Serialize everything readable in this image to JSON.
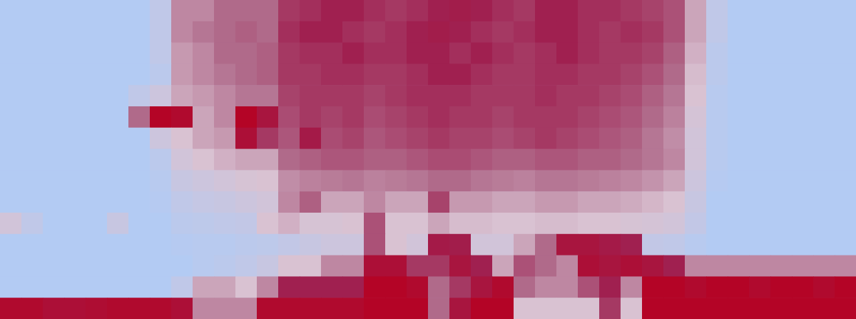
{
  "chart_data": {
    "type": "heatmap",
    "zlim": [
      0,
      1
    ],
    "tick_labels": false,
    "cells": [
      [
        0.3,
        0.3,
        0.3,
        0.3,
        0.3,
        0.3,
        0.3,
        0.35,
        0.55,
        0.55,
        0.6,
        0.6,
        0.6,
        0.7,
        0.72,
        0.75,
        0.75,
        0.72,
        0.7,
        0.72,
        0.75,
        0.78,
        0.75,
        0.72,
        0.7,
        0.75,
        0.75,
        0.72,
        0.72,
        0.7,
        0.68,
        0.65,
        0.5,
        0.35,
        0.3,
        0.3,
        0.3,
        0.3,
        0.3,
        0.3
      ],
      [
        0.3,
        0.3,
        0.3,
        0.3,
        0.3,
        0.3,
        0.3,
        0.35,
        0.55,
        0.58,
        0.6,
        0.62,
        0.6,
        0.72,
        0.75,
        0.75,
        0.72,
        0.7,
        0.72,
        0.75,
        0.78,
        0.75,
        0.72,
        0.7,
        0.72,
        0.75,
        0.75,
        0.72,
        0.7,
        0.72,
        0.7,
        0.65,
        0.5,
        0.35,
        0.3,
        0.3,
        0.3,
        0.3,
        0.3,
        0.3
      ],
      [
        0.3,
        0.3,
        0.3,
        0.3,
        0.3,
        0.3,
        0.3,
        0.35,
        0.52,
        0.55,
        0.6,
        0.6,
        0.62,
        0.7,
        0.72,
        0.72,
        0.75,
        0.72,
        0.72,
        0.75,
        0.75,
        0.72,
        0.75,
        0.72,
        0.7,
        0.72,
        0.75,
        0.72,
        0.7,
        0.7,
        0.68,
        0.62,
        0.48,
        0.33,
        0.3,
        0.3,
        0.3,
        0.3,
        0.3,
        0.3
      ],
      [
        0.3,
        0.3,
        0.3,
        0.3,
        0.3,
        0.3,
        0.3,
        0.33,
        0.52,
        0.55,
        0.58,
        0.6,
        0.62,
        0.7,
        0.7,
        0.72,
        0.72,
        0.7,
        0.7,
        0.72,
        0.75,
        0.75,
        0.72,
        0.7,
        0.7,
        0.72,
        0.72,
        0.7,
        0.7,
        0.68,
        0.65,
        0.6,
        0.46,
        0.33,
        0.3,
        0.3,
        0.3,
        0.3,
        0.3,
        0.3
      ],
      [
        0.3,
        0.3,
        0.3,
        0.3,
        0.3,
        0.3,
        0.35,
        0.4,
        0.5,
        0.52,
        0.55,
        0.58,
        0.58,
        0.68,
        0.7,
        0.7,
        0.7,
        0.68,
        0.7,
        0.72,
        0.72,
        0.72,
        0.7,
        0.7,
        0.7,
        0.72,
        0.7,
        0.7,
        0.68,
        0.66,
        0.62,
        0.58,
        0.45,
        0.32,
        0.3,
        0.3,
        0.3,
        0.3,
        0.3,
        0.3
      ],
      [
        0.3,
        0.3,
        0.3,
        0.3,
        0.3,
        0.3,
        0.6,
        1.0,
        0.95,
        0.5,
        0.55,
        1.0,
        0.85,
        0.66,
        0.7,
        0.68,
        0.7,
        0.66,
        0.68,
        0.7,
        0.72,
        0.7,
        0.7,
        0.68,
        0.7,
        0.7,
        0.7,
        0.68,
        0.66,
        0.64,
        0.6,
        0.56,
        0.43,
        0.32,
        0.3,
        0.3,
        0.3,
        0.3,
        0.3,
        0.3
      ],
      [
        0.3,
        0.3,
        0.3,
        0.3,
        0.3,
        0.3,
        0.3,
        0.4,
        0.45,
        0.5,
        0.52,
        0.9,
        0.7,
        0.64,
        0.8,
        0.66,
        0.68,
        0.64,
        0.66,
        0.68,
        0.7,
        0.68,
        0.68,
        0.66,
        0.68,
        0.7,
        0.68,
        0.66,
        0.64,
        0.62,
        0.58,
        0.54,
        0.42,
        0.32,
        0.3,
        0.3,
        0.3,
        0.3,
        0.3,
        0.3
      ],
      [
        0.3,
        0.3,
        0.3,
        0.3,
        0.3,
        0.3,
        0.3,
        0.33,
        0.42,
        0.45,
        0.48,
        0.5,
        0.5,
        0.6,
        0.62,
        0.64,
        0.64,
        0.62,
        0.62,
        0.64,
        0.66,
        0.66,
        0.64,
        0.62,
        0.62,
        0.64,
        0.64,
        0.62,
        0.62,
        0.6,
        0.58,
        0.55,
        0.42,
        0.32,
        0.3,
        0.3,
        0.3,
        0.3,
        0.3,
        0.3
      ],
      [
        0.3,
        0.3,
        0.3,
        0.3,
        0.3,
        0.3,
        0.3,
        0.32,
        0.38,
        0.4,
        0.42,
        0.44,
        0.45,
        0.54,
        0.56,
        0.57,
        0.58,
        0.56,
        0.57,
        0.58,
        0.6,
        0.6,
        0.58,
        0.57,
        0.56,
        0.58,
        0.58,
        0.57,
        0.56,
        0.55,
        0.53,
        0.5,
        0.4,
        0.31,
        0.3,
        0.3,
        0.3,
        0.3,
        0.3,
        0.3
      ],
      [
        0.3,
        0.3,
        0.3,
        0.3,
        0.3,
        0.3,
        0.3,
        0.31,
        0.35,
        0.37,
        0.38,
        0.4,
        0.42,
        0.55,
        0.62,
        0.5,
        0.5,
        0.55,
        0.5,
        0.5,
        0.68,
        0.52,
        0.52,
        0.5,
        0.5,
        0.52,
        0.52,
        0.5,
        0.5,
        0.49,
        0.47,
        0.45,
        0.38,
        0.3,
        0.3,
        0.3,
        0.3,
        0.3,
        0.3,
        0.3
      ],
      [
        0.42,
        0.35,
        0.3,
        0.3,
        0.3,
        0.38,
        0.3,
        0.3,
        0.33,
        0.34,
        0.35,
        0.36,
        0.45,
        0.48,
        0.44,
        0.44,
        0.45,
        0.65,
        0.45,
        0.45,
        0.5,
        0.46,
        0.46,
        0.45,
        0.45,
        0.46,
        0.46,
        0.45,
        0.45,
        0.44,
        0.43,
        0.42,
        0.36,
        0.3,
        0.3,
        0.3,
        0.3,
        0.3,
        0.3,
        0.3
      ],
      [
        0.3,
        0.3,
        0.3,
        0.3,
        0.3,
        0.3,
        0.3,
        0.3,
        0.31,
        0.32,
        0.32,
        0.33,
        0.34,
        0.36,
        0.38,
        0.4,
        0.4,
        0.65,
        0.45,
        0.42,
        0.8,
        0.78,
        0.42,
        0.42,
        0.5,
        0.6,
        0.85,
        0.85,
        0.8,
        0.75,
        0.36,
        0.35,
        0.32,
        0.3,
        0.3,
        0.3,
        0.3,
        0.3,
        0.3,
        0.3
      ],
      [
        0.3,
        0.3,
        0.3,
        0.3,
        0.3,
        0.3,
        0.3,
        0.3,
        0.3,
        0.32,
        0.33,
        0.35,
        0.38,
        0.45,
        0.45,
        0.55,
        0.55,
        0.9,
        0.9,
        0.7,
        0.7,
        0.85,
        0.75,
        0.5,
        0.65,
        0.6,
        0.55,
        0.9,
        0.85,
        0.9,
        0.85,
        0.75,
        0.55,
        0.55,
        0.55,
        0.55,
        0.55,
        0.55,
        0.55,
        0.55
      ],
      [
        0.3,
        0.3,
        0.3,
        0.3,
        0.3,
        0.3,
        0.3,
        0.3,
        0.35,
        0.5,
        0.5,
        0.45,
        0.55,
        0.75,
        0.75,
        0.75,
        0.75,
        1.0,
        1.0,
        0.95,
        0.6,
        0.7,
        0.85,
        0.95,
        0.6,
        0.55,
        0.55,
        0.65,
        0.75,
        0.55,
        1.0,
        1.0,
        0.95,
        1.0,
        1.0,
        0.95,
        1.0,
        1.0,
        0.95,
        1.0
      ],
      [
        0.95,
        0.95,
        0.9,
        0.9,
        0.92,
        0.95,
        0.95,
        0.95,
        0.9,
        0.55,
        0.55,
        0.55,
        0.95,
        0.95,
        0.95,
        0.95,
        0.95,
        1.0,
        1.0,
        1.0,
        0.6,
        0.85,
        1.0,
        1.0,
        0.45,
        0.45,
        0.45,
        0.45,
        0.7,
        0.45,
        1.0,
        1.0,
        1.0,
        1.0,
        1.0,
        1.0,
        1.0,
        1.0,
        1.0,
        1.0
      ]
    ]
  }
}
